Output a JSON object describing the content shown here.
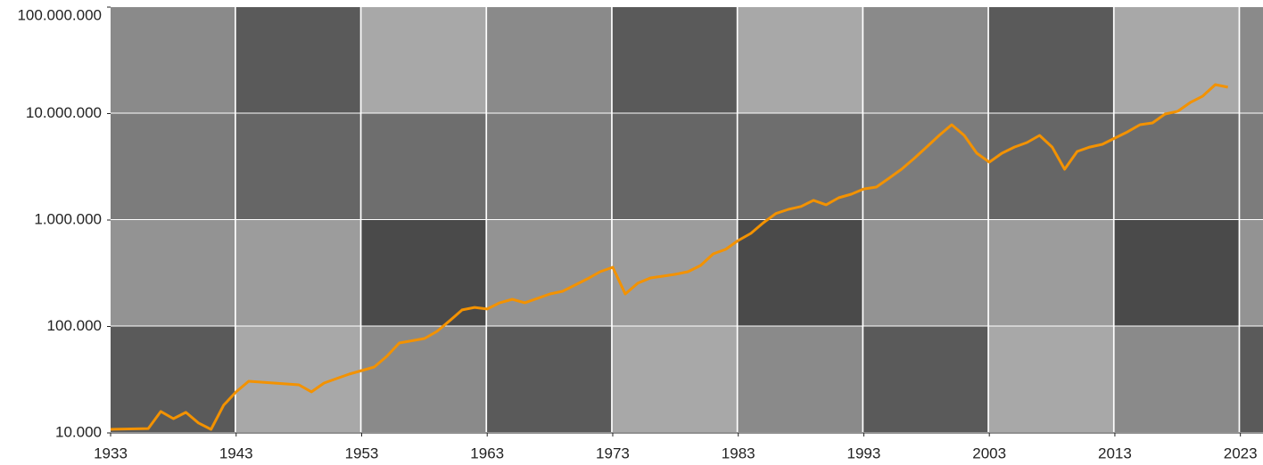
{
  "chart_data": {
    "type": "line",
    "log_y": true,
    "color": "#f39200",
    "xlim": [
      1933,
      2024.8
    ],
    "xticks": [
      1933,
      1943,
      1953,
      1963,
      1973,
      1983,
      1993,
      2003,
      2013,
      2023
    ],
    "ylim": [
      10000,
      100000000
    ],
    "yticks": [
      {
        "value": 10000,
        "label": "10.000"
      },
      {
        "value": 100000,
        "label": "100.000"
      },
      {
        "value": 1000000,
        "label": "1.000.000"
      },
      {
        "value": 10000000,
        "label": "10.000.000"
      },
      {
        "value": 100000000,
        "label": "100.000.000"
      }
    ],
    "x": [
      1933,
      1936,
      1937,
      1938,
      1939,
      1940,
      1941,
      1942,
      1943,
      1944,
      1946,
      1948,
      1949,
      1950,
      1952,
      1954,
      1955,
      1956,
      1958,
      1959,
      1960,
      1961,
      1962,
      1963,
      1964,
      1965,
      1966,
      1968,
      1969,
      1970,
      1971,
      1972,
      1973,
      1974,
      1975,
      1976,
      1977,
      1978,
      1979,
      1980,
      1981,
      1982,
      1983,
      1984,
      1985,
      1986,
      1987,
      1988,
      1989,
      1990,
      1991,
      1992,
      1993,
      1994,
      1995,
      1996,
      1997,
      1998,
      1999,
      2000,
      2001,
      2002,
      2003,
      2004,
      2005,
      2006,
      2007,
      2008,
      2009,
      2010,
      2011,
      2012,
      2013,
      2014,
      2015,
      2016,
      2017,
      2018,
      2019,
      2020,
      2021,
      2022
    ],
    "values": [
      10800,
      11000,
      15900,
      13600,
      15600,
      12400,
      10800,
      18200,
      24300,
      30600,
      29400,
      28300,
      24300,
      29400,
      35700,
      41600,
      52400,
      70000,
      77100,
      90000,
      113000,
      143000,
      151000,
      146000,
      167000,
      180000,
      167000,
      202000,
      214000,
      245000,
      281000,
      327000,
      360000,
      202000,
      255000,
      286000,
      297000,
      309000,
      327000,
      374000,
      481000,
      530000,
      643000,
      749000,
      944000,
      1150000,
      1260000,
      1340000,
      1530000,
      1390000,
      1620000,
      1750000,
      1960000,
      2040000,
      2470000,
      3000000,
      3780000,
      4850000,
      6240000,
      7860000,
      6240000,
      4240000,
      3500000,
      4240000,
      4850000,
      5350000,
      6240000,
      4850000,
      3000000,
      4410000,
      4850000,
      5140000,
      5890000,
      6730000,
      7860000,
      8170000,
      9910000,
      10500000,
      12700000,
      14600000,
      18700000,
      17700000
    ]
  }
}
